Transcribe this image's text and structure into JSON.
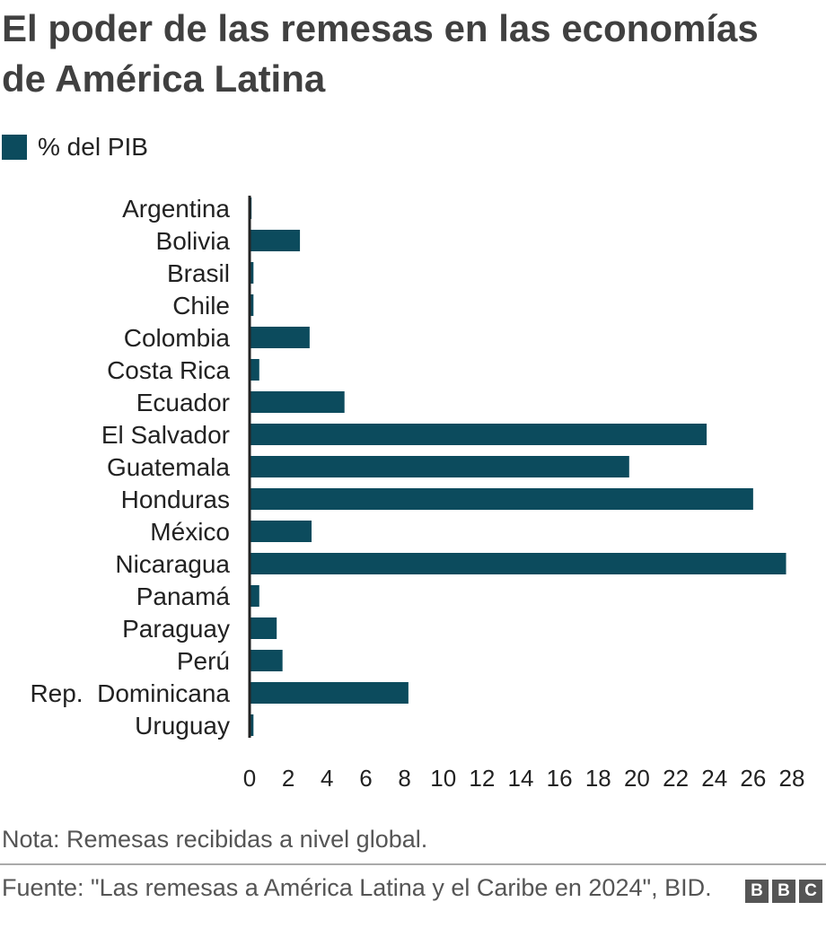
{
  "title": "El poder de las remesas en las economías de América Latina",
  "legend": {
    "label": "% del PIB",
    "color": "#0c4b5d"
  },
  "note": "Nota: Remesas recibidas a nivel global.",
  "source": "Fuente: \"Las remesas a América Latina y el Caribe en 2024\", BID.",
  "logo": [
    "B",
    "B",
    "C"
  ],
  "chart_data": {
    "type": "bar",
    "orientation": "horizontal",
    "categories": [
      "Argentina",
      "Bolivia",
      "Brasil",
      "Chile",
      "Colombia",
      "Costa Rica",
      "Ecuador",
      "El Salvador",
      "Guatemala",
      "Honduras",
      "México",
      "Nicaragua",
      "Panamá",
      "Paraguay",
      "Perú",
      "Rep.  Dominicana",
      "Uruguay"
    ],
    "series": [
      {
        "name": "% del PIB",
        "values": [
          0.1,
          2.6,
          0.2,
          0.2,
          3.1,
          0.5,
          4.9,
          23.6,
          19.6,
          26.0,
          3.2,
          27.7,
          0.5,
          1.4,
          1.7,
          8.2,
          0.2
        ]
      }
    ],
    "color": "#0c4b5d",
    "xlim": [
      0,
      28
    ],
    "xticks": [
      0,
      2,
      4,
      6,
      8,
      10,
      12,
      14,
      16,
      18,
      20,
      22,
      24,
      26,
      28
    ],
    "grid": false,
    "legend_position": "top-left"
  }
}
